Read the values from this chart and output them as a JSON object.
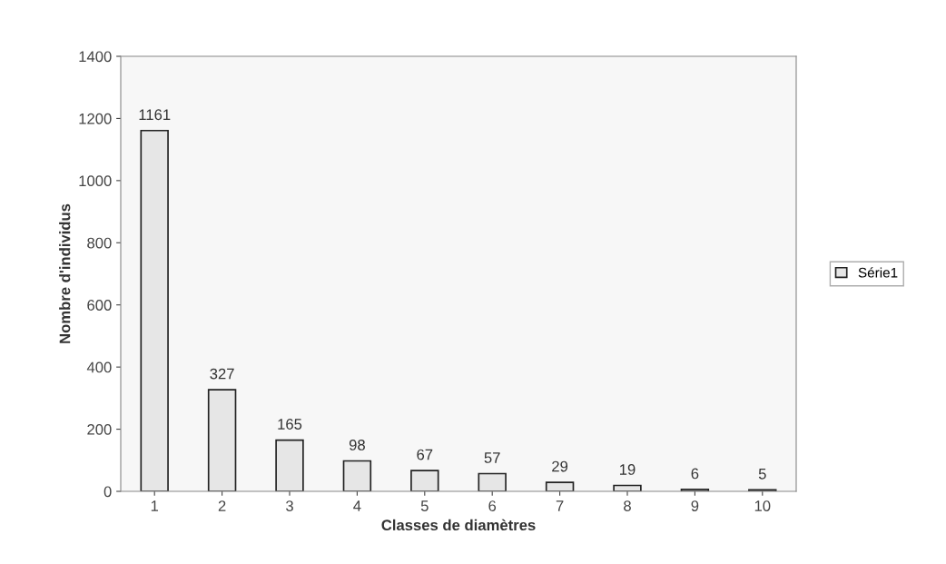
{
  "chart_data": {
    "type": "bar",
    "xlabel": "Classes de diamètres",
    "ylabel": "Nombre d'individus",
    "categories": [
      "1",
      "2",
      "3",
      "4",
      "5",
      "6",
      "7",
      "8",
      "9",
      "10"
    ],
    "series": [
      {
        "name": "Série1",
        "color": "#e6e6e6",
        "values": [
          1161,
          327,
          165,
          98,
          67,
          57,
          29,
          19,
          6,
          5
        ]
      }
    ],
    "ylim": [
      0,
      1400
    ],
    "yticks": [
      0,
      200,
      400,
      600,
      800,
      1000,
      1200,
      1400
    ],
    "data_labels": true,
    "legend": "right",
    "grid": false
  }
}
